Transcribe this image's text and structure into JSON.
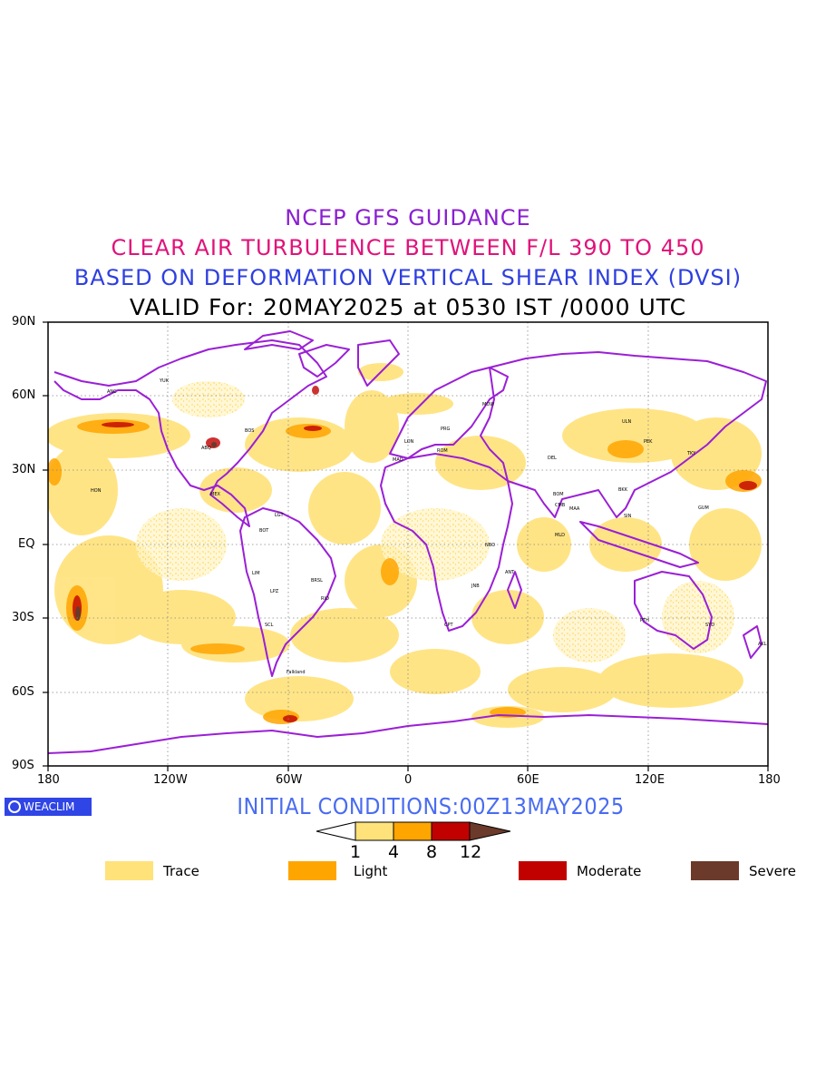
{
  "titles": {
    "line1": "NCEP GFS GUIDANCE",
    "line2": "CLEAR AIR TURBULENCE BETWEEN F/L 390 TO 450",
    "line3": "BASED ON DEFORMATION VERTICAL SHEAR INDEX (DVSI)",
    "line4": "VALID For: 20MAY2025 at 0530 IST /0000 UTC"
  },
  "colors": {
    "title1": "#8a1fd1",
    "title2": "#e0137a",
    "title3": "#2e3fe0",
    "coast": "#9b1fd6",
    "trace": "#ffe27a",
    "light": "#ffa500",
    "moderate": "#c10000",
    "severe": "#6b3a2a"
  },
  "map": {
    "lat_labels": [
      "90N",
      "60N",
      "30N",
      "EQ",
      "30S",
      "60S",
      "90S"
    ],
    "lon_labels": [
      "180",
      "120W",
      "60W",
      "0",
      "60E",
      "120E",
      "180"
    ],
    "station_labels": [
      "ANC",
      "YUK",
      "HON",
      "LGT",
      "BOT",
      "LIM",
      "SCL",
      "LPZ",
      "BRSL",
      "RIO",
      "Falkland",
      "MEX",
      "ABQ",
      "BOS",
      "MOW",
      "LON",
      "ROM",
      "DEL",
      "BOM",
      "MAA",
      "CMB",
      "MLD",
      "NBO",
      "JNB",
      "CPT",
      "ANT",
      "PTH",
      "SYD",
      "AKL",
      "GUM",
      "BKK",
      "SIN",
      "PEK",
      "TKY",
      "ULN",
      "PRG",
      "MAD"
    ]
  },
  "footer": {
    "initial_conditions": "INITIAL CONDITIONS:00Z13MAY2025",
    "logo_text": "WEACLIM"
  },
  "colorbar": {
    "ticks": [
      "1",
      "4",
      "8",
      "12"
    ]
  },
  "legend": [
    {
      "label": "Trace",
      "color": "#ffe27a"
    },
    {
      "label": "Light",
      "color": "#ffa500"
    },
    {
      "label": "Moderate",
      "color": "#c10000"
    },
    {
      "label": "Severe",
      "color": "#6b3a2a"
    }
  ]
}
